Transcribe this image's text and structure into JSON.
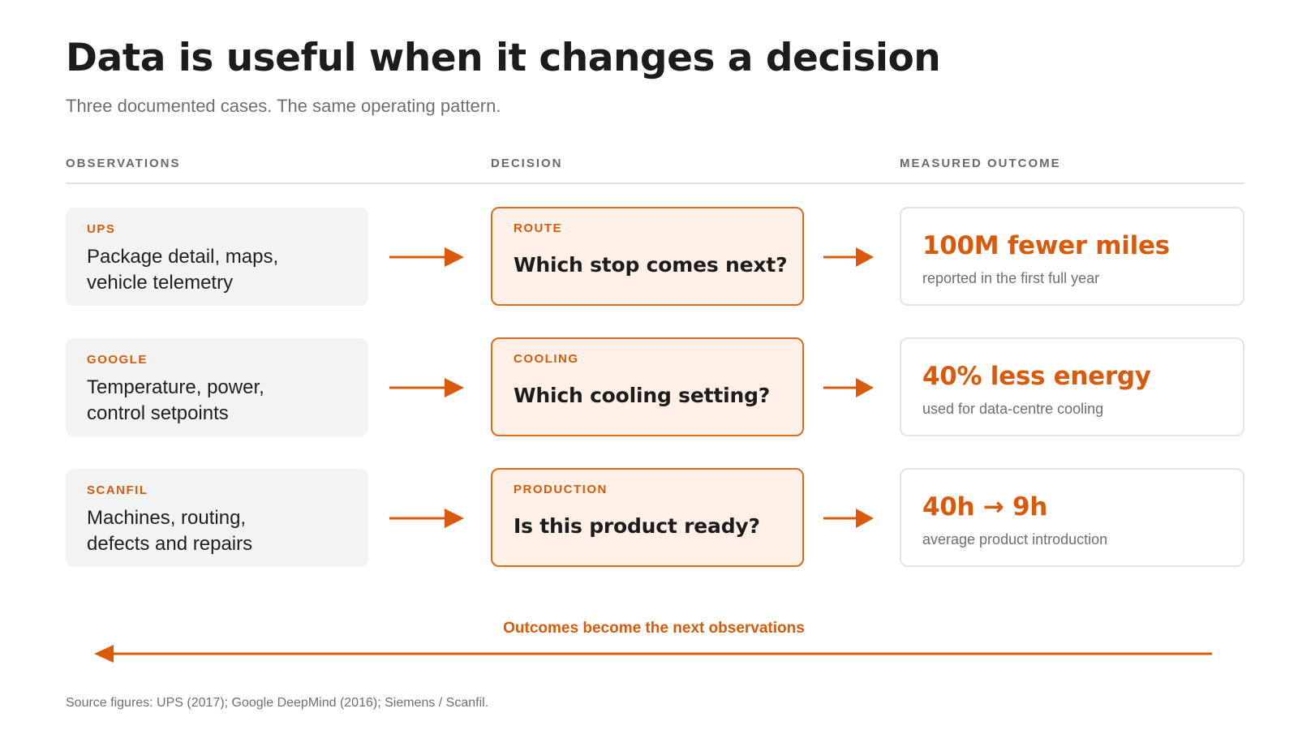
{
  "title": "Data is useful when it changes a decision",
  "subtitle": "Three documented cases. The same operating pattern.",
  "columns": {
    "observations": "OBSERVATIONS",
    "decision": "DECISION",
    "outcome": "MEASURED OUTCOME"
  },
  "rows": [
    {
      "company": "UPS",
      "observations": "Package detail, maps,\nvehicle telemetry",
      "decision_tag": "ROUTE",
      "decision_question": "Which stop comes next?",
      "outcome_value": "100M fewer miles",
      "outcome_desc": "reported in the first full year"
    },
    {
      "company": "GOOGLE",
      "observations": "Temperature, power,\ncontrol setpoints",
      "decision_tag": "COOLING",
      "decision_question": "Which cooling setting?",
      "outcome_value": "40% less energy",
      "outcome_desc": "used for data-centre cooling"
    },
    {
      "company": "SCANFIL",
      "observations": "Machines, routing,\ndefects and repairs",
      "decision_tag": "PRODUCTION",
      "decision_question": "Is this product ready?",
      "outcome_value": "40h → 9h",
      "outcome_desc": "average product introduction"
    }
  ],
  "loop_label": "Outcomes become the next observations",
  "source": "Source figures: UPS (2017); Google DeepMind (2016); Siemens / Scanfil.",
  "colors": {
    "accent": "#d95a0b",
    "decision_fill": "#fff1e7",
    "observation_fill": "#f3f3f3"
  }
}
